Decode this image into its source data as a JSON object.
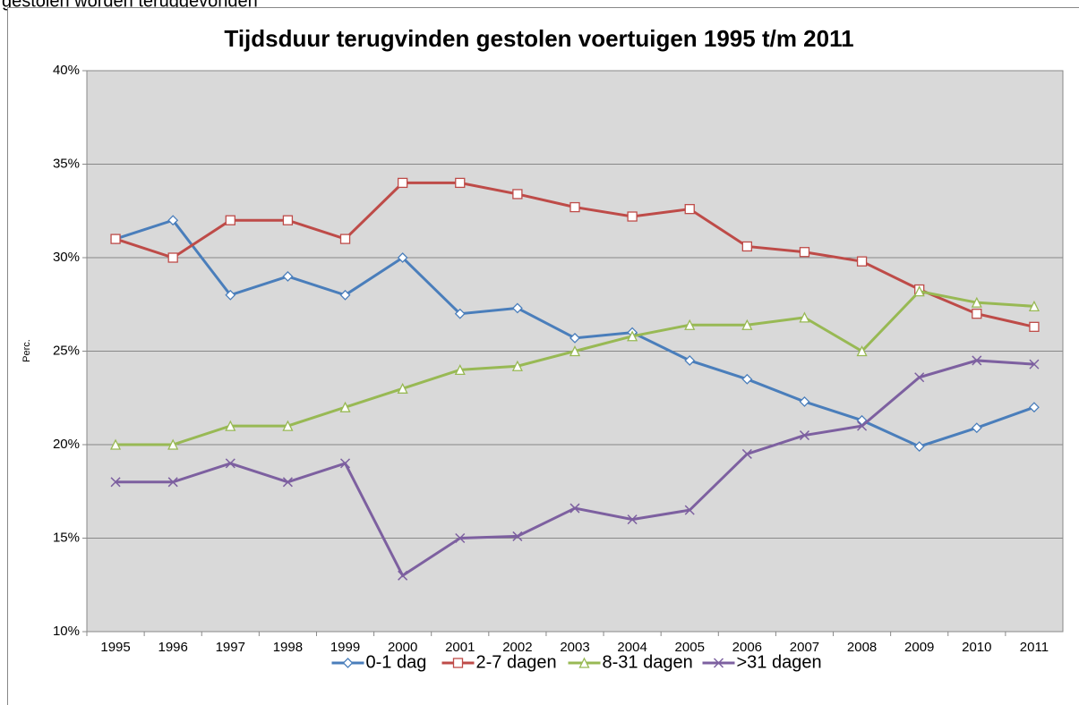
{
  "caption": "gestolen worden teruggevonden",
  "chart_data": {
    "type": "line",
    "title": "Tijdsduur terugvinden gestolen voertuigen 1995 t/m 2011",
    "y_label": "Perc.",
    "categories": [
      "1995",
      "1996",
      "1997",
      "1998",
      "1999",
      "2000",
      "2001",
      "2002",
      "2003",
      "2004",
      "2005",
      "2006",
      "2007",
      "2008",
      "2009",
      "2010",
      "2011"
    ],
    "series": [
      {
        "name": "0-1 dag",
        "color": "#4a7ebb",
        "marker": "diamond",
        "values": [
          31,
          32,
          28,
          29,
          28,
          30,
          27,
          27.3,
          25.7,
          26,
          24.5,
          23.5,
          22.3,
          21.3,
          19.9,
          20.9,
          22
        ]
      },
      {
        "name": "2-7 dagen",
        "color": "#be4b48",
        "marker": "square",
        "values": [
          31,
          30,
          32,
          32,
          31,
          34,
          34,
          33.4,
          32.7,
          32.2,
          32.6,
          30.6,
          30.3,
          29.8,
          28.3,
          27,
          26.3
        ]
      },
      {
        "name": "8-31 dagen",
        "color": "#98b954",
        "marker": "triangle",
        "values": [
          20,
          20,
          21,
          21,
          22,
          23,
          24,
          24.2,
          25,
          25.8,
          26.4,
          26.4,
          26.8,
          25,
          28.2,
          27.6,
          27.4
        ]
      },
      {
        "name": ">31 dagen",
        "color": "#7d60a0",
        "marker": "x",
        "values": [
          18,
          18,
          19,
          18,
          19,
          13,
          15,
          15.1,
          16.6,
          16,
          16.5,
          19.5,
          20.5,
          21,
          23.6,
          24.5,
          24.3
        ]
      }
    ],
    "ylim": [
      10,
      40
    ],
    "yticks": [
      {
        "value": 10,
        "label": "10%"
      },
      {
        "value": 15,
        "label": "15%"
      },
      {
        "value": 20,
        "label": "20%"
      },
      {
        "value": 25,
        "label": "25%"
      },
      {
        "value": 30,
        "label": "30%"
      },
      {
        "value": 35,
        "label": "35%"
      },
      {
        "value": 40,
        "label": "40%"
      }
    ],
    "grid": true,
    "legend": "bottom"
  }
}
